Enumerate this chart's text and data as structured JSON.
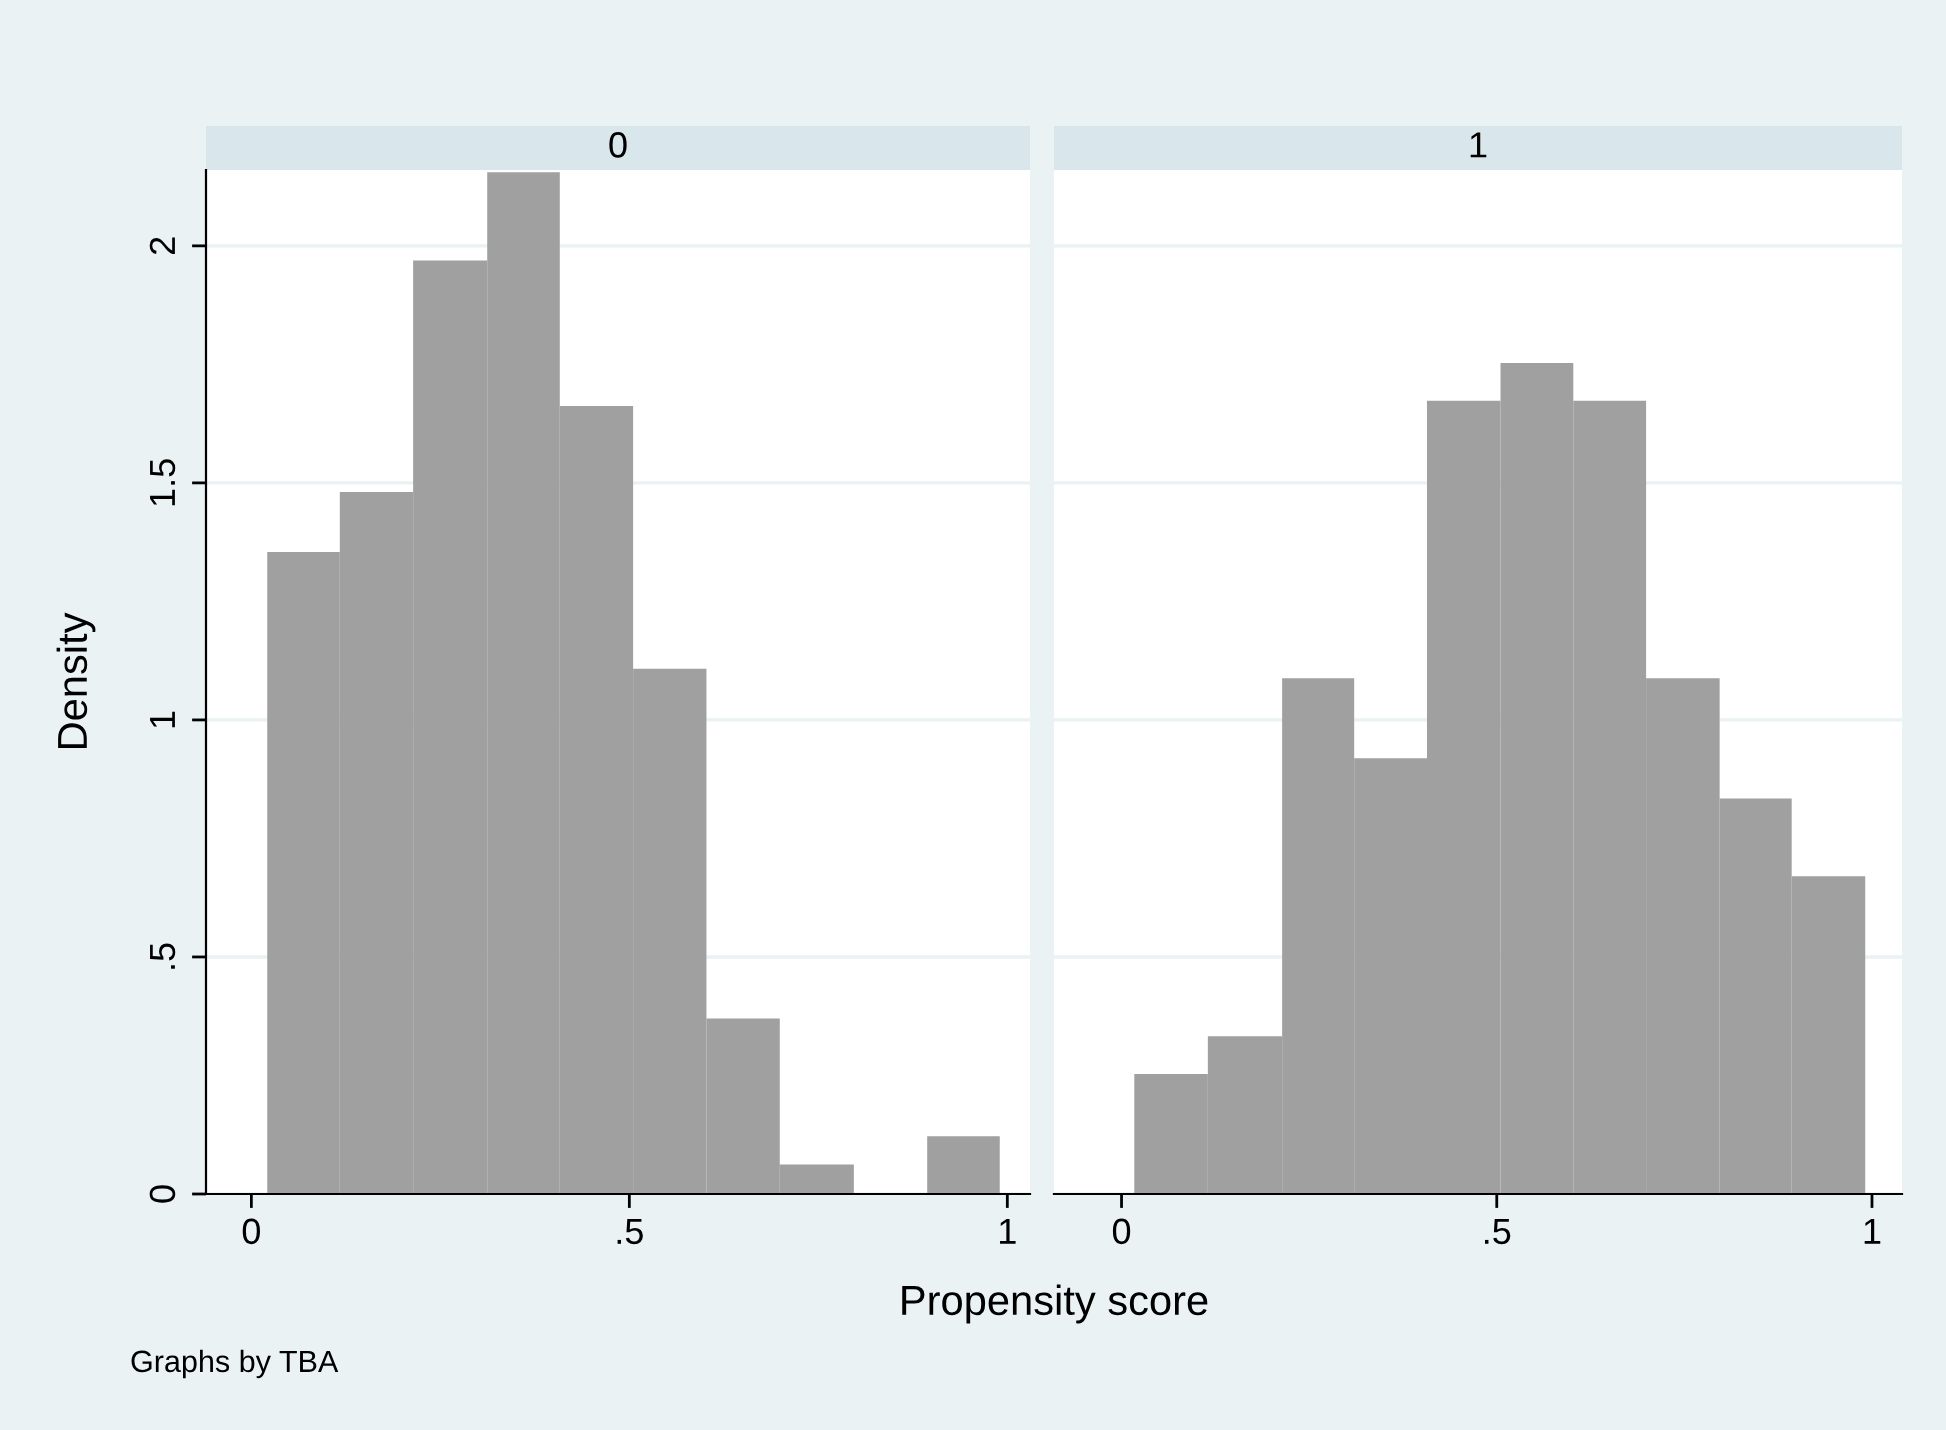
{
  "chart_data": [
    {
      "type": "histogram",
      "title": "0",
      "xlabel": "Propensity score",
      "ylabel": "Density",
      "annotations": [
        "Graphs by TBA"
      ],
      "color": "#a0a0a0",
      "bins": [
        0.021,
        0.117,
        0.214,
        0.312,
        0.408,
        0.505,
        0.602,
        0.699,
        0.797,
        0.894,
        0.99
      ],
      "values": [
        1.354,
        1.481,
        1.969,
        2.155,
        1.662,
        1.108,
        0.37,
        0.062,
        0,
        0.122
      ],
      "xlim": [
        -0.06,
        1.03
      ],
      "xticks": [
        0,
        {
          "value": 0.5,
          "label": ".5"
        },
        1
      ],
      "ylim": [
        0,
        2.16
      ],
      "yticks": [
        0,
        {
          "value": 0.5,
          "label": ".5"
        },
        1,
        1.5,
        2
      ],
      "grid": "y"
    },
    {
      "type": "histogram",
      "title": "1",
      "color": "#a0a0a0",
      "bins": [
        0.017,
        0.115,
        0.214,
        0.31,
        0.407,
        0.505,
        0.602,
        0.699,
        0.797,
        0.893,
        0.991
      ],
      "values": [
        0.253,
        0.333,
        1.088,
        0.919,
        1.673,
        1.753,
        1.673,
        1.088,
        0.834,
        0.67
      ],
      "xlim": [
        -0.09,
        1.04
      ],
      "xticks": [
        0,
        {
          "value": 0.5,
          "label": ".5"
        },
        1
      ],
      "ylim": [
        0,
        2.16
      ],
      "yticks": [
        {
          "value": 0,
          "label": null
        },
        {
          "value": 0.5,
          "label": null
        },
        {
          "value": 1,
          "label": null
        },
        {
          "value": 1.5,
          "label": null
        },
        {
          "value": 2,
          "label": null
        }
      ],
      "grid": "y",
      "tick_labels": "x"
    }
  ]
}
